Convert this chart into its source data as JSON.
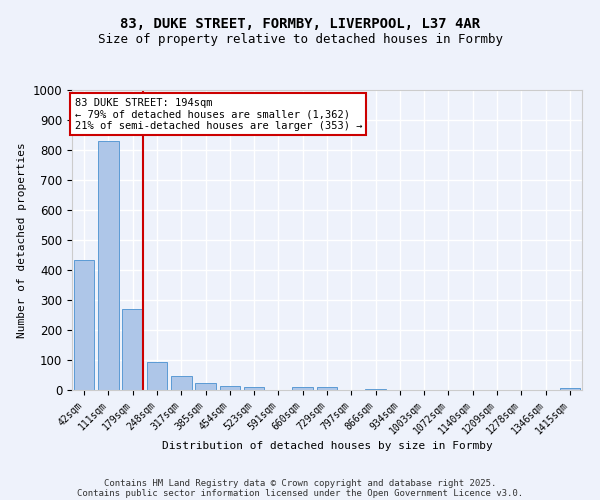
{
  "title": "83, DUKE STREET, FORMBY, LIVERPOOL, L37 4AR",
  "subtitle": "Size of property relative to detached houses in Formby",
  "xlabel": "Distribution of detached houses by size in Formby",
  "ylabel": "Number of detached properties",
  "categories": [
    "42sqm",
    "111sqm",
    "179sqm",
    "248sqm",
    "317sqm",
    "385sqm",
    "454sqm",
    "523sqm",
    "591sqm",
    "660sqm",
    "729sqm",
    "797sqm",
    "866sqm",
    "934sqm",
    "1003sqm",
    "1072sqm",
    "1140sqm",
    "1209sqm",
    "1278sqm",
    "1346sqm",
    "1415sqm"
  ],
  "values": [
    435,
    830,
    270,
    95,
    48,
    22,
    14,
    10,
    0,
    10,
    10,
    0,
    5,
    0,
    0,
    0,
    0,
    0,
    0,
    0,
    8
  ],
  "bar_color": "#aec6e8",
  "bar_edge_color": "#5b9bd5",
  "vline_x": 2.425,
  "annotation_text": "83 DUKE STREET: 194sqm\n← 79% of detached houses are smaller (1,362)\n21% of semi-detached houses are larger (353) →",
  "annotation_box_facecolor": "#ffffff",
  "annotation_box_edgecolor": "#cc0000",
  "vline_color": "#cc0000",
  "footer_line1": "Contains HM Land Registry data © Crown copyright and database right 2025.",
  "footer_line2": "Contains public sector information licensed under the Open Government Licence v3.0.",
  "ylim": [
    0,
    1000
  ],
  "background_color": "#eef2fb",
  "grid_color": "#ffffff",
  "title_fontsize": 10,
  "subtitle_fontsize": 9,
  "axis_label_fontsize": 8,
  "tick_fontsize": 7,
  "footer_fontsize": 6.5,
  "annotation_fontsize": 7.5
}
